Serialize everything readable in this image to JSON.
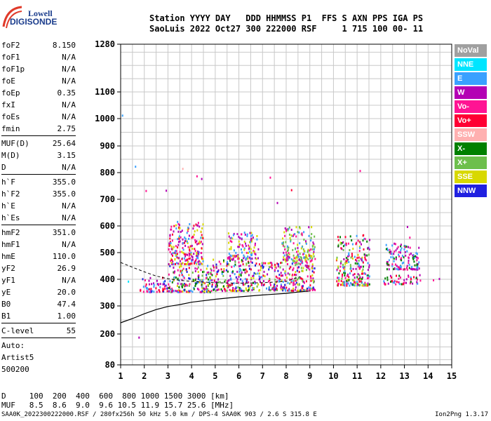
{
  "logo": {
    "line1": "Lowell",
    "line2": "DIGISONDE"
  },
  "header": {
    "line1": "Station YYYY DAY   DDD HHMMSS P1  FFS S AXN PPS IGA PS",
    "line2": "SaoLuis 2022 Oct27 300 222000 RSF     1 715 100 00- 11"
  },
  "params": [
    {
      "name": "foF2",
      "value": "8.150"
    },
    {
      "name": "foF1",
      "value": "N/A"
    },
    {
      "name": "foF1p",
      "value": "N/A"
    },
    {
      "name": "foE",
      "value": "N/A"
    },
    {
      "name": "foEp",
      "value": "0.35"
    },
    {
      "name": "fxI",
      "value": "N/A"
    },
    {
      "name": "foEs",
      "value": "N/A"
    },
    {
      "name": "fmin",
      "value": "2.75"
    },
    {
      "sep": true
    },
    {
      "name": "MUF(D)",
      "value": "25.64"
    },
    {
      "name": "M(D)",
      "value": "3.15"
    },
    {
      "name": "D",
      "value": "N/A"
    },
    {
      "sep": true
    },
    {
      "name": "h`F",
      "value": "355.0"
    },
    {
      "name": "h`F2",
      "value": "355.0"
    },
    {
      "name": "h`E",
      "value": "N/A"
    },
    {
      "name": "h`Es",
      "value": "N/A"
    },
    {
      "sep": true
    },
    {
      "name": "hmF2",
      "value": "351.0"
    },
    {
      "name": "hmF1",
      "value": "N/A"
    },
    {
      "name": "hmE",
      "value": "110.0"
    },
    {
      "name": "yF2",
      "value": "26.9"
    },
    {
      "name": "yF1",
      "value": "N/A"
    },
    {
      "name": "yE",
      "value": "20.0"
    },
    {
      "name": "B0",
      "value": "47.4"
    },
    {
      "name": "B1",
      "value": "1.00"
    },
    {
      "sep": true
    },
    {
      "name": "C-level",
      "value": "55"
    },
    {
      "sep": true
    },
    {
      "name": "Auto:",
      "value": ""
    },
    {
      "name": "Artist5",
      "value": ""
    },
    {
      "name": "500200",
      "value": ""
    }
  ],
  "legend": [
    {
      "label": "NoVal",
      "color": "#a0a0a0"
    },
    {
      "label": "NNE",
      "color": "#00e5ff"
    },
    {
      "label": "E",
      "color": "#3aa0ff"
    },
    {
      "label": "W",
      "color": "#b400b4"
    },
    {
      "label": "Vo-",
      "color": "#ff1493"
    },
    {
      "label": "Vo+",
      "color": "#ff0033"
    },
    {
      "label": "SSW",
      "color": "#ffb0b0"
    },
    {
      "label": "X-",
      "color": "#008000"
    },
    {
      "label": "X+",
      "color": "#6dbf4c"
    },
    {
      "label": "SSE",
      "color": "#d8d800"
    },
    {
      "label": "NNW",
      "color": "#2020e0"
    }
  ],
  "footer": {
    "line1": "D     100  200  400  600  800 1000 1500 3000 [km]",
    "line2": "MUF   8.5  8.6  9.0  9.6 10.5 11.9 15.7 25.6 [MHz]",
    "filename": "SAA0K_2022300222000.RSF / 280fx256h 50 kHz 5.0 km / DPS-4 SAA0K 903 / 2.6 S 315.8 E",
    "version": "Ion2Png 1.3.17"
  },
  "chart_data": {
    "type": "scatter",
    "title": "",
    "xlabel": "",
    "ylabel": "",
    "xlim": [
      1,
      15
    ],
    "y_ticks": [
      80,
      200,
      300,
      400,
      500,
      600,
      700,
      800,
      900,
      1000,
      1100,
      1280
    ],
    "x_ticks": [
      1,
      2,
      3,
      4,
      5,
      6,
      7,
      8,
      9,
      10,
      11,
      12,
      13,
      14,
      15
    ],
    "grid": true,
    "echo_clusters": [
      {
        "f": [
          1.8,
          3.0
        ],
        "h": [
          355,
          410
        ],
        "colors": [
          "#2020e0",
          "#b400b4",
          "#ff0033",
          "#ff1493",
          "#3aa0ff"
        ]
      },
      {
        "f": [
          3.0,
          4.8
        ],
        "h": [
          355,
          460
        ],
        "colors": [
          "#ff0033",
          "#b400b4",
          "#ff1493",
          "#008000",
          "#2020e0",
          "#d8d800",
          "#6dbf4c",
          "#3aa0ff"
        ]
      },
      {
        "f": [
          3.0,
          4.5
        ],
        "h": [
          460,
          620
        ],
        "colors": [
          "#b400b4",
          "#ff1493",
          "#d8d800",
          "#3aa0ff",
          "#ff0033"
        ]
      },
      {
        "f": [
          4.8,
          6.6
        ],
        "h": [
          360,
          480
        ],
        "colors": [
          "#ff0033",
          "#ff1493",
          "#b400b4",
          "#2020e0",
          "#3aa0ff",
          "#d8d800",
          "#008000",
          "#6dbf4c"
        ]
      },
      {
        "f": [
          5.5,
          6.8
        ],
        "h": [
          480,
          580
        ],
        "colors": [
          "#b400b4",
          "#ff1493",
          "#3aa0ff",
          "#d8d800"
        ]
      },
      {
        "f": [
          6.6,
          9.2
        ],
        "h": [
          360,
          470
        ],
        "colors": [
          "#ff0033",
          "#3aa0ff",
          "#b400b4",
          "#ff1493",
          "#d8d800",
          "#2020e0",
          "#6dbf4c"
        ]
      },
      {
        "f": [
          7.8,
          9.2
        ],
        "h": [
          470,
          600
        ],
        "colors": [
          "#d8d800",
          "#ff1493",
          "#b400b4",
          "#3aa0ff",
          "#6dbf4c"
        ]
      },
      {
        "f": [
          10.1,
          11.5
        ],
        "h": [
          380,
          570
        ],
        "colors": [
          "#008000",
          "#ff0033",
          "#d8d800",
          "#6dbf4c",
          "#ff1493",
          "#b400b4",
          "#3aa0ff"
        ]
      },
      {
        "f": [
          12.1,
          13.7
        ],
        "h": [
          385,
          420
        ],
        "colors": [
          "#ff1493",
          "#b400b4",
          "#ff0033",
          "#008000",
          "#3aa0ff"
        ]
      },
      {
        "f": [
          12.2,
          13.6
        ],
        "h": [
          440,
          540
        ],
        "colors": [
          "#008000",
          "#ff1493",
          "#3aa0ff",
          "#b400b4"
        ]
      }
    ],
    "sparse_points": [
      {
        "f": 1.6,
        "h": 826,
        "c": "#3aa0ff"
      },
      {
        "f": 1.75,
        "h": 190,
        "c": "#b400b4"
      },
      {
        "f": 2.05,
        "h": 735,
        "c": "#ff1493"
      },
      {
        "f": 2.9,
        "h": 736,
        "c": "#b400b4"
      },
      {
        "f": 3.6,
        "h": 818,
        "c": "#ffb0b0"
      },
      {
        "f": 4.2,
        "h": 790,
        "c": "#ff1493"
      },
      {
        "f": 4.4,
        "h": 780,
        "c": "#b400b4"
      },
      {
        "f": 7.3,
        "h": 785,
        "c": "#ff1493"
      },
      {
        "f": 7.6,
        "h": 690,
        "c": "#b400b4"
      },
      {
        "f": 8.2,
        "h": 738,
        "c": "#ff0033"
      },
      {
        "f": 11.1,
        "h": 810,
        "c": "#ff1493"
      },
      {
        "f": 13.1,
        "h": 600,
        "c": "#b400b4"
      },
      {
        "f": 13.2,
        "h": 560,
        "c": "#ff1493"
      },
      {
        "f": 14.2,
        "h": 400,
        "c": "#ff1493"
      },
      {
        "f": 14.45,
        "h": 405,
        "c": "#b400b4"
      },
      {
        "f": 1.3,
        "h": 395,
        "c": "#00e5ff"
      },
      {
        "f": 1.05,
        "h": 1015,
        "c": "#3aa0ff"
      }
    ],
    "profile_solid": {
      "f": [
        1.0,
        1.5,
        2.0,
        2.5,
        3.0,
        3.5,
        4.0,
        5.0,
        6.0,
        7.0,
        8.0,
        8.5,
        9.0
      ],
      "h": [
        240,
        255,
        272,
        287,
        298,
        305,
        314,
        325,
        334,
        341,
        347,
        352,
        356
      ]
    },
    "profile_dashed": {
      "f": [
        1.0,
        1.5,
        2.0,
        2.5,
        3.0,
        3.5,
        4.0,
        5.0,
        6.0,
        7.0,
        8.0,
        8.6
      ],
      "h": [
        463,
        445,
        428,
        412,
        402,
        396,
        392,
        387,
        385,
        387,
        392,
        410
      ]
    }
  }
}
